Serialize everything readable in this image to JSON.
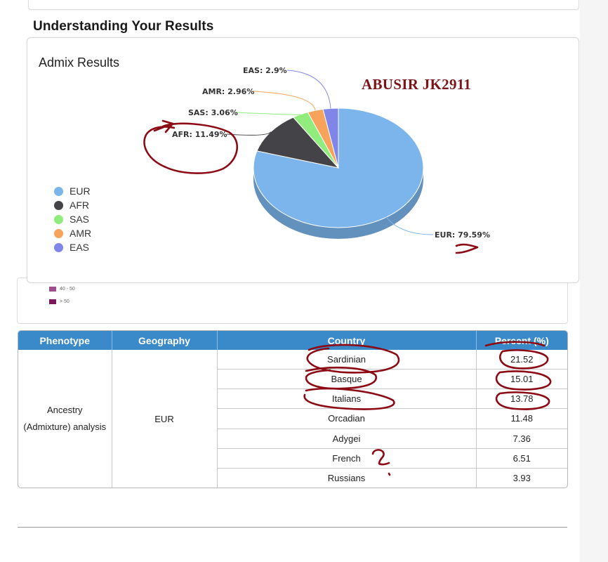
{
  "section": {
    "title": "Understanding Your Results"
  },
  "chart_card": {
    "title": "Admix Results",
    "watermark": "ABUSIR JK2911"
  },
  "chart_data": {
    "type": "pie",
    "title": "Admix Results",
    "slices": [
      {
        "name": "EUR",
        "value": 79.59,
        "label": "EUR: 79.59%",
        "color": "#7cb5ec"
      },
      {
        "name": "AFR",
        "value": 11.49,
        "label": "AFR: 11.49%",
        "color": "#434348"
      },
      {
        "name": "SAS",
        "value": 3.06,
        "label": "SAS: 3.06%",
        "color": "#90ed7d"
      },
      {
        "name": "AMR",
        "value": 2.96,
        "label": "AMR: 2.96%",
        "color": "#f7a35c"
      },
      {
        "name": "EAS",
        "value": 2.9,
        "label": "EAS: 2.9%",
        "color": "#8085e9"
      }
    ],
    "legend": [
      "EUR",
      "AFR",
      "SAS",
      "AMR",
      "EAS"
    ],
    "legend_position": "left"
  },
  "map_legend": [
    {
      "label": "40 - 50",
      "color": "#a04d8e"
    },
    {
      "label": "> 50",
      "color": "#7a1a5c"
    }
  ],
  "table": {
    "headers": [
      "Phenotype",
      "Geography",
      "Country",
      "Percent (%)"
    ],
    "phenotype_line1": "Ancestry",
    "phenotype_line2": "(Admixture) analysis",
    "geography": "EUR",
    "rows": [
      {
        "country": "Sardinian",
        "percent": "21.52"
      },
      {
        "country": "Basque",
        "percent": "15.01"
      },
      {
        "country": "Italians",
        "percent": "13.78"
      },
      {
        "country": "Orcadian",
        "percent": "11.48"
      },
      {
        "country": "Adygei",
        "percent": "7.36"
      },
      {
        "country": "French",
        "percent": "6.51"
      },
      {
        "country": "Russians",
        "percent": "3.93"
      }
    ]
  },
  "annotations": {
    "ink_color": "#8b0a14",
    "question_mark": "?"
  }
}
